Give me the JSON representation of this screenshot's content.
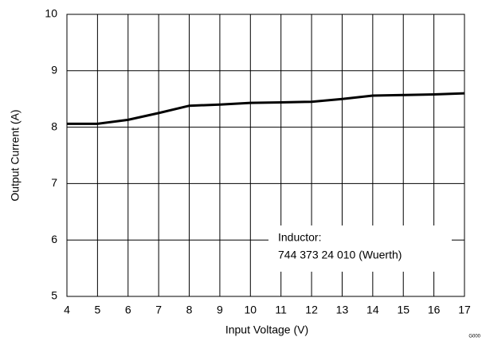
{
  "chart_data": {
    "type": "line",
    "x_label": "Input Voltage (V)",
    "y_label": "Output Current (A)",
    "annotation": [
      "Inductor:",
      "744 373 24 010 (Wuerth)"
    ],
    "figure_id": "G000",
    "x": [
      4,
      5,
      6,
      7,
      8,
      9,
      10,
      11,
      12,
      13,
      14,
      15,
      16,
      17
    ],
    "series": [
      {
        "color": "#000000",
        "values": [
          8.06,
          8.06,
          8.13,
          8.25,
          8.38,
          8.4,
          8.43,
          8.44,
          8.45,
          8.5,
          8.56,
          8.57,
          8.58,
          8.6
        ]
      }
    ],
    "xlim": [
      4,
      17
    ],
    "xticks": [
      4,
      5,
      6,
      7,
      8,
      9,
      10,
      11,
      12,
      13,
      14,
      15,
      16,
      17
    ],
    "ylim": [
      5,
      10
    ],
    "yticks": [
      5,
      6,
      7,
      8,
      9,
      10
    ],
    "grid": true
  }
}
